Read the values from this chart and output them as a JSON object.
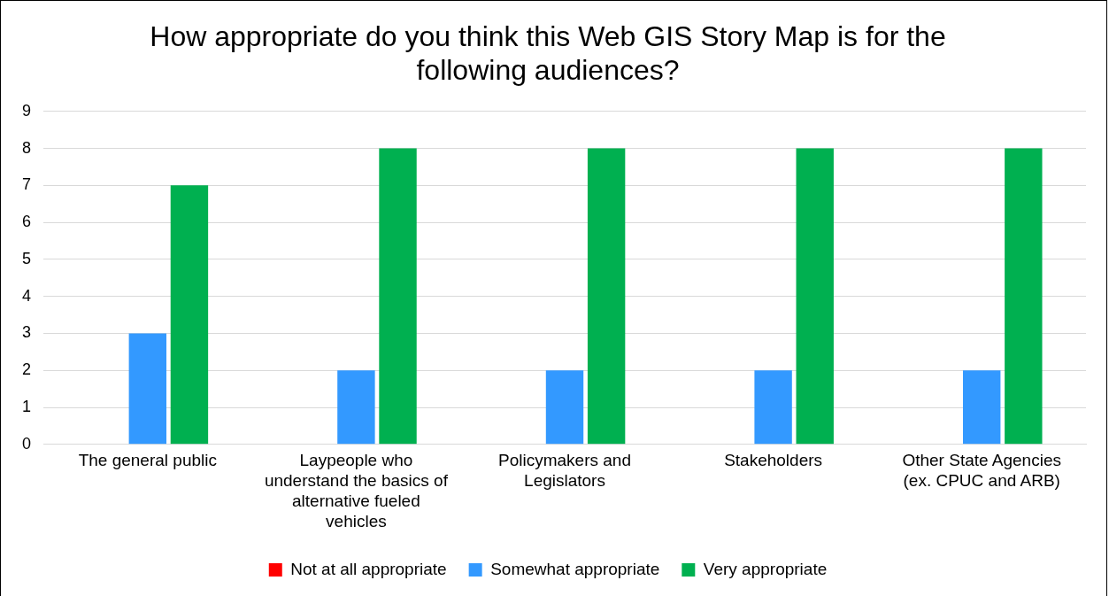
{
  "chart_data": {
    "type": "bar",
    "title": "How appropriate do you think this Web GIS Story Map is for the following audiences?",
    "categories": [
      "The general public",
      "Laypeople who understand the basics of alternative fueled vehicles",
      "Policymakers and Legislators",
      "Stakeholders",
      "Other State Agencies (ex. CPUC and ARB)"
    ],
    "series": [
      {
        "name": "Not at all appropriate",
        "color": "#ff0000",
        "values": [
          0,
          0,
          0,
          0,
          0
        ]
      },
      {
        "name": "Somewhat appropriate",
        "color": "#3399ff",
        "values": [
          3,
          2,
          2,
          2,
          2
        ]
      },
      {
        "name": "Very appropriate",
        "color": "#00b050",
        "values": [
          7,
          8,
          8,
          8,
          8
        ]
      }
    ],
    "ylim": [
      0,
      9
    ],
    "yticks": [
      0,
      1,
      2,
      3,
      4,
      5,
      6,
      7,
      8,
      9
    ],
    "grid": "y",
    "legend": "bottom"
  }
}
